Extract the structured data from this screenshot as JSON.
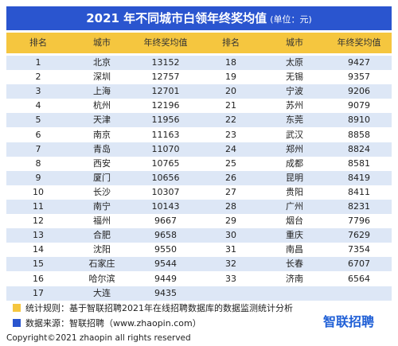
{
  "header": {
    "title": "2021 年不同城市白领年终奖均值",
    "unit": "(单位：元)"
  },
  "columns": [
    "排名",
    "城市",
    "年终奖均值"
  ],
  "table": {
    "left": [
      [
        1,
        "北京",
        13152
      ],
      [
        2,
        "深圳",
        12757
      ],
      [
        3,
        "上海",
        12701
      ],
      [
        4,
        "杭州",
        12196
      ],
      [
        5,
        "天津",
        11956
      ],
      [
        6,
        "南京",
        11163
      ],
      [
        7,
        "青岛",
        11070
      ],
      [
        8,
        "西安",
        10765
      ],
      [
        9,
        "厦门",
        10656
      ],
      [
        10,
        "长沙",
        10307
      ],
      [
        11,
        "南宁",
        10143
      ],
      [
        12,
        "福州",
        9667
      ],
      [
        13,
        "合肥",
        9658
      ],
      [
        14,
        "沈阳",
        9550
      ],
      [
        15,
        "石家庄",
        9544
      ],
      [
        16,
        "哈尔滨",
        9449
      ],
      [
        17,
        "大连",
        9435
      ]
    ],
    "right": [
      [
        18,
        "太原",
        9427
      ],
      [
        19,
        "无锡",
        9357
      ],
      [
        20,
        "宁波",
        9206
      ],
      [
        21,
        "苏州",
        9079
      ],
      [
        22,
        "东莞",
        8910
      ],
      [
        23,
        "武汉",
        8858
      ],
      [
        24,
        "郑州",
        8824
      ],
      [
        25,
        "成都",
        8581
      ],
      [
        26,
        "昆明",
        8419
      ],
      [
        27,
        "贵阳",
        8411
      ],
      [
        28,
        "广州",
        8231
      ],
      [
        29,
        "烟台",
        7796
      ],
      [
        30,
        "重庆",
        7629
      ],
      [
        31,
        "南昌",
        7354
      ],
      [
        32,
        "长春",
        6707
      ],
      [
        33,
        "济南",
        6564
      ]
    ]
  },
  "notes": [
    "统计规则：基于智联招聘2021年在线招聘数据库的数据监测统计分析",
    "数据来源：智联招聘（www.zhaopin.com）"
  ],
  "logo": "智联招聘",
  "copyright": "Copyright©2021 zhaopin all rights reserved"
}
